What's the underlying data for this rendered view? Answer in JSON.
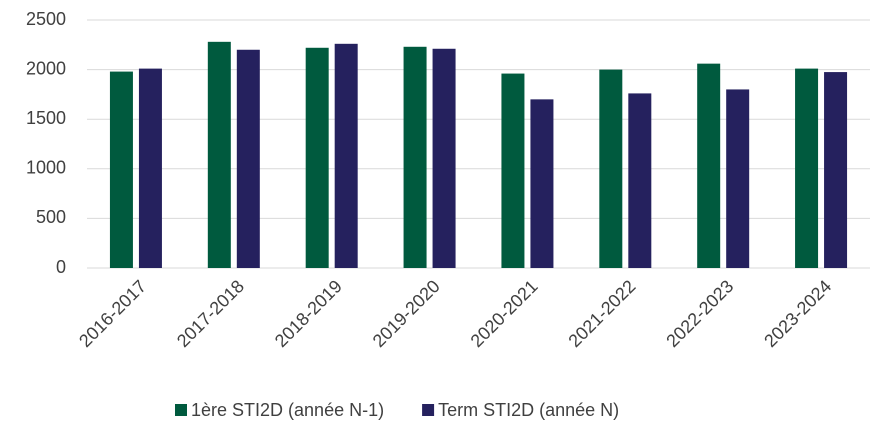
{
  "chart_data": {
    "type": "bar",
    "categories": [
      "2016-2017",
      "2017-2018",
      "2018-2019",
      "2019-2020",
      "2020-2021",
      "2021-2022",
      "2022-2023",
      "2023-2024"
    ],
    "series": [
      {
        "name": "1ère STI2D (année N-1)",
        "color": "#005a3e",
        "values": [
          1980,
          2280,
          2220,
          2230,
          1960,
          2000,
          2060,
          2010
        ]
      },
      {
        "name": "Term STI2D (année N)",
        "color": "#25215e",
        "values": [
          2010,
          2200,
          2260,
          2210,
          1700,
          1760,
          1800,
          1975
        ]
      }
    ],
    "ylim": [
      0,
      2500
    ],
    "yticks": [
      0,
      500,
      1000,
      1500,
      2000,
      2500
    ],
    "grid": true,
    "legend": "bottom"
  }
}
